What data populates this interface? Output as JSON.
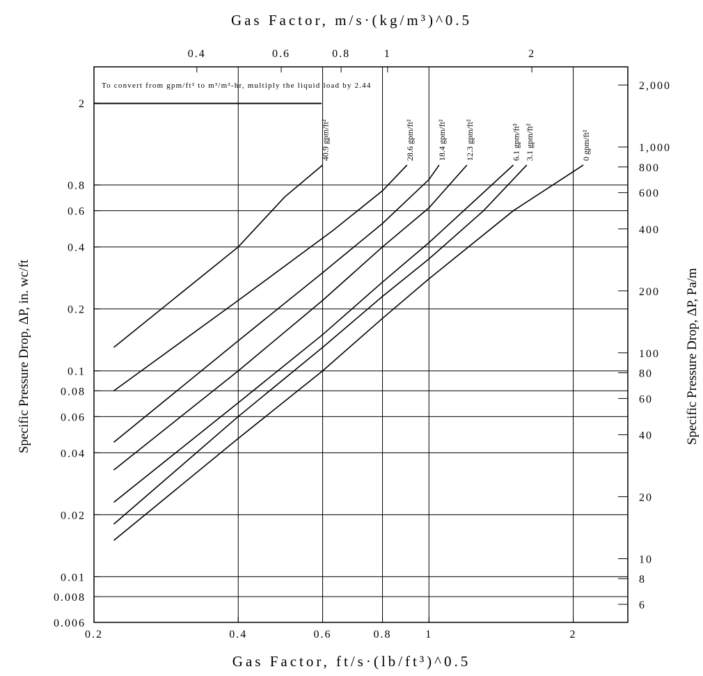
{
  "chart_data": {
    "type": "line",
    "title": "",
    "note": "To convert from gpm/ft² to m³/m²-hr, multiply the liquid load by 2.44",
    "xlabel_bottom": "Gas Factor, ft/s·(lb/ft³)^0.5",
    "xlabel_top": "Gas Factor, m/s·(kg/m³)^0.5",
    "ylabel_left": "Specific Pressure Drop, ΔP, in. wc/ft",
    "ylabel_right": "Specific Pressure Drop, ΔP, Pa/m",
    "x_scale": "log",
    "y_scale": "log",
    "xlim": [
      0.2,
      2.6
    ],
    "ylim": [
      0.006,
      3.0
    ],
    "x_ticks_bottom": [
      "0.2",
      "0.4",
      "0.6",
      "0.8",
      "1",
      "2"
    ],
    "x_ticks_top": [
      "0.4",
      "0.6",
      "0.8",
      "1",
      "2"
    ],
    "y_ticks_left": [
      "2",
      "0.8",
      "0.6",
      "0.4",
      "0.2",
      "0.1",
      "0.08",
      "0.06",
      "0.04",
      "0.02",
      "0.01",
      "0.008",
      "0.006"
    ],
    "y_ticks_right": [
      "2,000",
      "1,000",
      "800",
      "600",
      "400",
      "200",
      "100",
      "80",
      "60",
      "40",
      "20",
      "10",
      "8",
      "6"
    ],
    "grid": true,
    "series": [
      {
        "name": "40.9 gpm/ft²",
        "x": [
          0.22,
          0.4,
          0.5,
          0.6
        ],
        "y": [
          0.13,
          0.4,
          0.7,
          1.0
        ]
      },
      {
        "name": "28.6 gpm/ft²",
        "x": [
          0.22,
          0.4,
          0.63,
          0.8,
          0.9
        ],
        "y": [
          0.08,
          0.22,
          0.48,
          0.75,
          1.0
        ]
      },
      {
        "name": "18.4 gpm/ft²",
        "x": [
          0.22,
          0.4,
          0.6,
          0.8,
          1.0,
          1.05
        ],
        "y": [
          0.045,
          0.14,
          0.3,
          0.52,
          0.85,
          1.0
        ]
      },
      {
        "name": "12.3 gpm/ft²",
        "x": [
          0.22,
          0.4,
          0.6,
          0.8,
          1.0,
          1.2
        ],
        "y": [
          0.033,
          0.1,
          0.22,
          0.4,
          0.62,
          1.0
        ]
      },
      {
        "name": "6.1 gpm/ft²",
        "x": [
          0.22,
          0.4,
          0.6,
          0.8,
          1.0,
          1.2,
          1.5
        ],
        "y": [
          0.023,
          0.07,
          0.15,
          0.27,
          0.42,
          0.62,
          1.0
        ]
      },
      {
        "name": "3.1 gpm/ft²",
        "x": [
          0.22,
          0.4,
          0.6,
          0.8,
          1.0,
          1.3,
          1.6
        ],
        "y": [
          0.018,
          0.06,
          0.13,
          0.23,
          0.35,
          0.6,
          1.0
        ]
      },
      {
        "name": "0 gpm/ft²",
        "x": [
          0.22,
          0.4,
          0.6,
          0.8,
          1.0,
          1.5,
          2.1
        ],
        "y": [
          0.015,
          0.047,
          0.1,
          0.18,
          0.28,
          0.6,
          1.0
        ]
      }
    ]
  }
}
